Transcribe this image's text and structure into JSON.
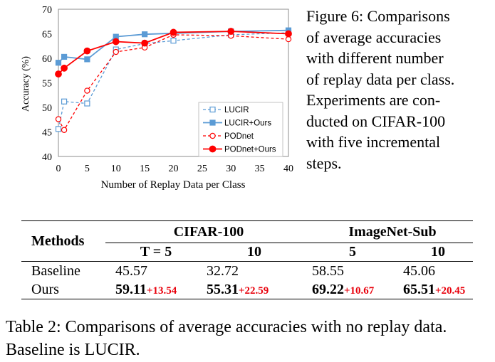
{
  "chart_data": {
    "type": "line",
    "ylabel": "Accuracy (%)",
    "xlabel": "Number of Replay Data per Class",
    "ylim": [
      40,
      70
    ],
    "yticks": [
      40,
      45,
      50,
      55,
      60,
      65,
      70
    ],
    "xlim": [
      0,
      40
    ],
    "xticks": [
      0,
      5,
      10,
      15,
      20,
      25,
      30,
      35,
      40
    ],
    "grid": false,
    "legend_position": "bottom-right",
    "series": [
      {
        "name": "LUCIR",
        "x": [
          0,
          1,
          5,
          10,
          15,
          20,
          30,
          40
        ],
        "y": [
          45.6,
          51.2,
          50.8,
          61.8,
          63.0,
          63.6,
          64.8,
          65.2
        ],
        "color": "#5b9bd5",
        "dash": true,
        "marker": "square-open"
      },
      {
        "name": "LUCIR+Ours",
        "x": [
          0,
          1,
          5,
          10,
          15,
          20,
          30,
          40
        ],
        "y": [
          59.1,
          60.3,
          59.8,
          64.4,
          64.9,
          65.1,
          65.5,
          65.7
        ],
        "color": "#5b9bd5",
        "dash": false,
        "marker": "square-filled"
      },
      {
        "name": "PODnet",
        "x": [
          0,
          1,
          5,
          10,
          15,
          20,
          30,
          40
        ],
        "y": [
          47.6,
          45.4,
          53.4,
          61.3,
          62.2,
          64.8,
          64.6,
          63.9
        ],
        "color": "#ff0000",
        "dash": true,
        "marker": "circle-open"
      },
      {
        "name": "PODnet+Ours",
        "x": [
          0,
          1,
          5,
          10,
          15,
          20,
          30,
          40
        ],
        "y": [
          56.8,
          58.0,
          61.5,
          63.4,
          63.1,
          65.3,
          65.5,
          65.0
        ],
        "color": "#ff0000",
        "dash": false,
        "marker": "circle-filled"
      }
    ]
  },
  "figure_caption": {
    "lines": [
      "Figure 6:  Comparisons",
      "of average accuracies",
      "with different number",
      "of replay data per class.",
      "Experiments  are  con-",
      "ducted on CIFAR-100",
      "with five incremental",
      "steps."
    ]
  },
  "table": {
    "col_methods": "Methods",
    "group_cifar": "CIFAR-100",
    "group_imagenet": "ImageNet-Sub",
    "sub_cifar": [
      "T = 5",
      "10"
    ],
    "sub_imagenet": [
      "5",
      "10"
    ],
    "rows": [
      {
        "method": "Baseline",
        "cells": [
          {
            "value": "45.57",
            "delta": ""
          },
          {
            "value": "32.72",
            "delta": ""
          },
          {
            "value": "58.55",
            "delta": ""
          },
          {
            "value": "45.06",
            "delta": ""
          }
        ]
      },
      {
        "method": "Ours",
        "cells": [
          {
            "value": "59.11",
            "delta": "+13.54"
          },
          {
            "value": "55.31",
            "delta": "+22.59"
          },
          {
            "value": "69.22",
            "delta": "+10.67"
          },
          {
            "value": "65.51",
            "delta": "+20.45"
          }
        ]
      }
    ]
  },
  "table_caption": "Table 2: Comparisons of average accuracies with no replay data. Baseline is LUCIR."
}
